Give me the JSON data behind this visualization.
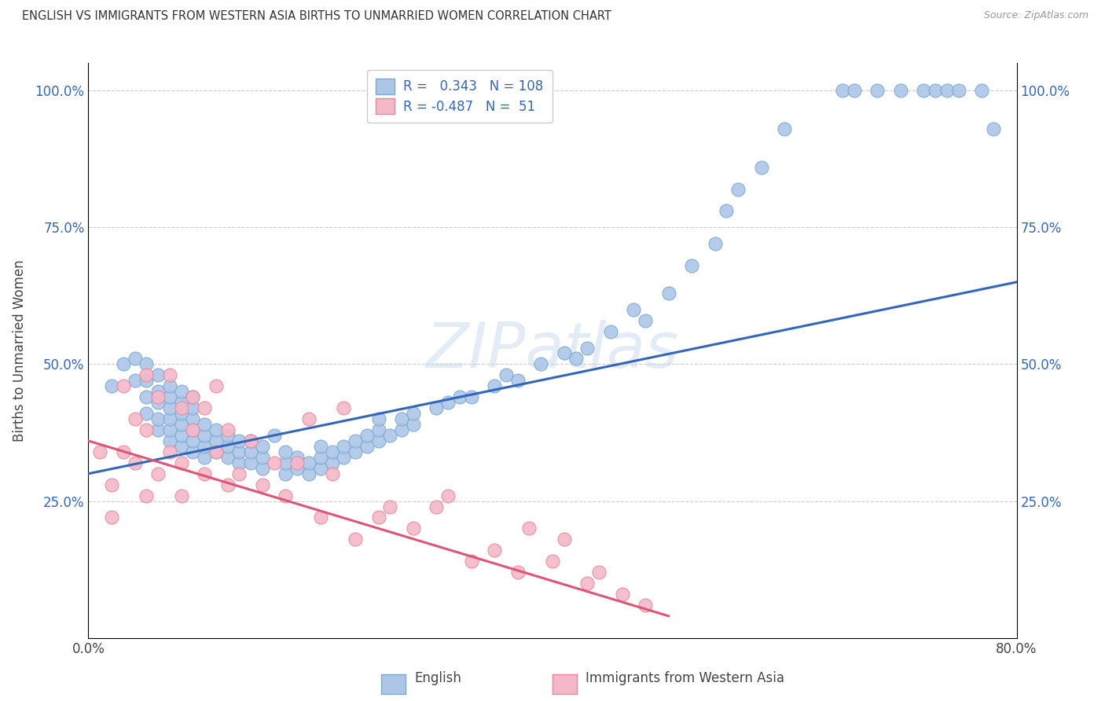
{
  "title": "ENGLISH VS IMMIGRANTS FROM WESTERN ASIA BIRTHS TO UNMARRIED WOMEN CORRELATION CHART",
  "source": "Source: ZipAtlas.com",
  "ylabel": "Births to Unmarried Women",
  "x_min": 0.0,
  "x_max": 0.8,
  "y_min": 0.0,
  "y_max": 1.05,
  "english_color": "#adc6e8",
  "english_edge_color": "#7aaad0",
  "immigrant_color": "#f5b8c8",
  "immigrant_edge_color": "#e8889a",
  "blue_line_color": "#3366bb",
  "pink_line_color": "#dd5577",
  "r_english": 0.343,
  "n_english": 108,
  "r_immigrant": -0.487,
  "n_immigrant": 51,
  "legend_label_english": "English",
  "legend_label_immigrant": "Immigrants from Western Asia",
  "watermark": "ZIPatlas",
  "english_x": [
    0.02,
    0.03,
    0.04,
    0.04,
    0.05,
    0.05,
    0.05,
    0.05,
    0.06,
    0.06,
    0.06,
    0.06,
    0.06,
    0.07,
    0.07,
    0.07,
    0.07,
    0.07,
    0.07,
    0.08,
    0.08,
    0.08,
    0.08,
    0.08,
    0.08,
    0.09,
    0.09,
    0.09,
    0.09,
    0.09,
    0.09,
    0.1,
    0.1,
    0.1,
    0.1,
    0.11,
    0.11,
    0.11,
    0.12,
    0.12,
    0.12,
    0.13,
    0.13,
    0.13,
    0.14,
    0.14,
    0.14,
    0.15,
    0.15,
    0.15,
    0.16,
    0.17,
    0.17,
    0.17,
    0.18,
    0.18,
    0.19,
    0.19,
    0.2,
    0.2,
    0.2,
    0.21,
    0.21,
    0.22,
    0.22,
    0.23,
    0.23,
    0.24,
    0.24,
    0.25,
    0.25,
    0.25,
    0.26,
    0.27,
    0.27,
    0.28,
    0.28,
    0.3,
    0.31,
    0.32,
    0.33,
    0.35,
    0.36,
    0.37,
    0.39,
    0.41,
    0.42,
    0.43,
    0.45,
    0.47,
    0.48,
    0.5,
    0.52,
    0.54,
    0.55,
    0.56,
    0.58,
    0.6,
    0.65,
    0.66,
    0.68,
    0.7,
    0.72,
    0.73,
    0.74,
    0.75,
    0.77,
    0.78
  ],
  "english_y": [
    0.46,
    0.5,
    0.47,
    0.51,
    0.41,
    0.44,
    0.47,
    0.5,
    0.38,
    0.4,
    0.43,
    0.45,
    0.48,
    0.36,
    0.38,
    0.4,
    0.42,
    0.44,
    0.46,
    0.35,
    0.37,
    0.39,
    0.41,
    0.43,
    0.45,
    0.34,
    0.36,
    0.38,
    0.4,
    0.42,
    0.44,
    0.33,
    0.35,
    0.37,
    0.39,
    0.34,
    0.36,
    0.38,
    0.33,
    0.35,
    0.37,
    0.32,
    0.34,
    0.36,
    0.32,
    0.34,
    0.36,
    0.31,
    0.33,
    0.35,
    0.37,
    0.3,
    0.32,
    0.34,
    0.31,
    0.33,
    0.3,
    0.32,
    0.31,
    0.33,
    0.35,
    0.32,
    0.34,
    0.33,
    0.35,
    0.34,
    0.36,
    0.35,
    0.37,
    0.36,
    0.38,
    0.4,
    0.37,
    0.38,
    0.4,
    0.39,
    0.41,
    0.42,
    0.43,
    0.44,
    0.44,
    0.46,
    0.48,
    0.47,
    0.5,
    0.52,
    0.51,
    0.53,
    0.56,
    0.6,
    0.58,
    0.63,
    0.68,
    0.72,
    0.78,
    0.82,
    0.86,
    0.93,
    1.0,
    1.0,
    1.0,
    1.0,
    1.0,
    1.0,
    1.0,
    1.0,
    1.0,
    0.93
  ],
  "immigrant_x": [
    0.01,
    0.02,
    0.02,
    0.03,
    0.03,
    0.04,
    0.04,
    0.05,
    0.05,
    0.05,
    0.06,
    0.06,
    0.07,
    0.07,
    0.08,
    0.08,
    0.08,
    0.09,
    0.09,
    0.1,
    0.1,
    0.11,
    0.11,
    0.12,
    0.12,
    0.13,
    0.14,
    0.15,
    0.16,
    0.17,
    0.18,
    0.19,
    0.2,
    0.21,
    0.22,
    0.23,
    0.25,
    0.26,
    0.28,
    0.3,
    0.31,
    0.33,
    0.35,
    0.37,
    0.38,
    0.4,
    0.41,
    0.43,
    0.44,
    0.46,
    0.48
  ],
  "immigrant_y": [
    0.34,
    0.28,
    0.22,
    0.46,
    0.34,
    0.32,
    0.4,
    0.48,
    0.38,
    0.26,
    0.44,
    0.3,
    0.48,
    0.34,
    0.42,
    0.32,
    0.26,
    0.38,
    0.44,
    0.3,
    0.42,
    0.34,
    0.46,
    0.28,
    0.38,
    0.3,
    0.36,
    0.28,
    0.32,
    0.26,
    0.32,
    0.4,
    0.22,
    0.3,
    0.42,
    0.18,
    0.22,
    0.24,
    0.2,
    0.24,
    0.26,
    0.14,
    0.16,
    0.12,
    0.2,
    0.14,
    0.18,
    0.1,
    0.12,
    0.08,
    0.06
  ],
  "blue_line_x0": 0.0,
  "blue_line_y0": 0.3,
  "blue_line_x1": 0.8,
  "blue_line_y1": 0.65,
  "pink_line_x0": 0.0,
  "pink_line_y0": 0.36,
  "pink_line_x1": 0.5,
  "pink_line_y1": 0.04
}
